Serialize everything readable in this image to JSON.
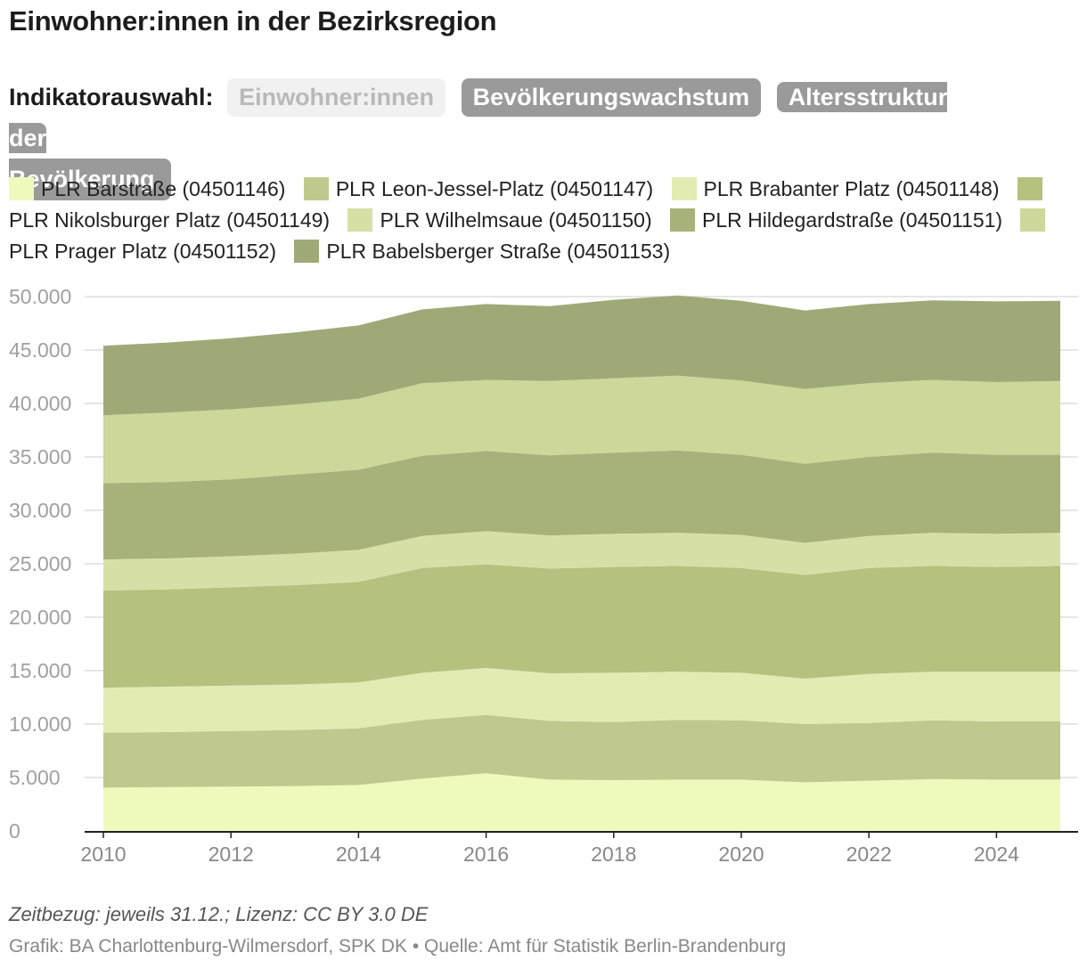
{
  "title": "Einwohner:innen in der Bezirksregion",
  "indicator": {
    "label": "Indikatorauswahl:",
    "buttons": [
      {
        "label": "Einwohner:innen",
        "active": true
      },
      {
        "label": "Bevölkerungswachstum",
        "active": false
      },
      {
        "label_line1": "Altersstruktur der",
        "label_line2": "Bevölkerung",
        "active": false
      }
    ]
  },
  "footnote": "Zeitbezug: jeweils 31.12.; Lizenz: CC BY 3.0 DE",
  "source": "Grafik: BA Charlottenburg-Wilmersdorf, SPK DK • Quelle: Amt für Statistik Berlin-Brandenburg",
  "chart_data": {
    "type": "area",
    "stacked": true,
    "title": "Einwohner:innen in der Bezirksregion",
    "xlabel": "",
    "ylabel": "",
    "x": [
      2010,
      2011,
      2012,
      2013,
      2014,
      2015,
      2016,
      2017,
      2018,
      2019,
      2020,
      2021,
      2022,
      2023,
      2024,
      2025
    ],
    "x_tick_labels": [
      "2010",
      "2012",
      "2014",
      "2016",
      "2018",
      "2020",
      "2022",
      "2024"
    ],
    "ylim": [
      0,
      50000
    ],
    "y_tick_labels": [
      "0",
      "5.000",
      "10.000",
      "15.000",
      "20.000",
      "25.000",
      "30.000",
      "35.000",
      "40.000",
      "45.000",
      "50.000"
    ],
    "legend_position": "top",
    "grid": true,
    "series": [
      {
        "name": "PLR Barstraße (04501146)",
        "color": "#eefabc",
        "values": [
          4050,
          4100,
          4150,
          4200,
          4300,
          4900,
          5400,
          4800,
          4750,
          4800,
          4800,
          4550,
          4700,
          4850,
          4800,
          4800
        ]
      },
      {
        "name": "PLR Leon-Jessel-Platz (04501147)",
        "color": "#bfc98d",
        "values": [
          5150,
          5150,
          5200,
          5250,
          5300,
          5500,
          5450,
          5500,
          5450,
          5600,
          5550,
          5450,
          5400,
          5500,
          5450,
          5450
        ]
      },
      {
        "name": "PLR Brabanter Platz (04501148)",
        "color": "#e2ecb2",
        "values": [
          4200,
          4250,
          4250,
          4250,
          4300,
          4400,
          4400,
          4450,
          4600,
          4500,
          4450,
          4250,
          4600,
          4550,
          4650,
          4650
        ]
      },
      {
        "name": "PLR Nikolsburger Platz (04501149)",
        "color": "#b5c17f",
        "values": [
          9100,
          9100,
          9200,
          9300,
          9400,
          9800,
          9700,
          9800,
          9900,
          9900,
          9800,
          9700,
          9900,
          9900,
          9800,
          9900
        ]
      },
      {
        "name": "PLR Wilhelmsaue (04501150)",
        "color": "#d6e0a6",
        "values": [
          2900,
          2900,
          2900,
          2950,
          3000,
          3000,
          3100,
          3100,
          3100,
          3100,
          3100,
          3000,
          3000,
          3100,
          3100,
          3100
        ]
      },
      {
        "name": "PLR Hildegardstraße (04501151)",
        "color": "#a7b27a",
        "values": [
          7150,
          7150,
          7200,
          7400,
          7500,
          7500,
          7500,
          7500,
          7600,
          7700,
          7500,
          7400,
          7400,
          7500,
          7400,
          7300
        ]
      },
      {
        "name": "PLR Prager Platz (04501152)",
        "color": "#ccd799",
        "values": [
          6350,
          6500,
          6550,
          6550,
          6650,
          6800,
          6650,
          6950,
          6950,
          7000,
          6950,
          7000,
          6900,
          6800,
          6800,
          6900
        ]
      },
      {
        "name": "PLR Babelsberger Straße (04501153)",
        "color": "#9daa78",
        "values": [
          6500,
          6550,
          6650,
          6750,
          6850,
          6900,
          7100,
          7000,
          7350,
          7500,
          7450,
          7350,
          7400,
          7450,
          7550,
          7500
        ]
      }
    ]
  }
}
